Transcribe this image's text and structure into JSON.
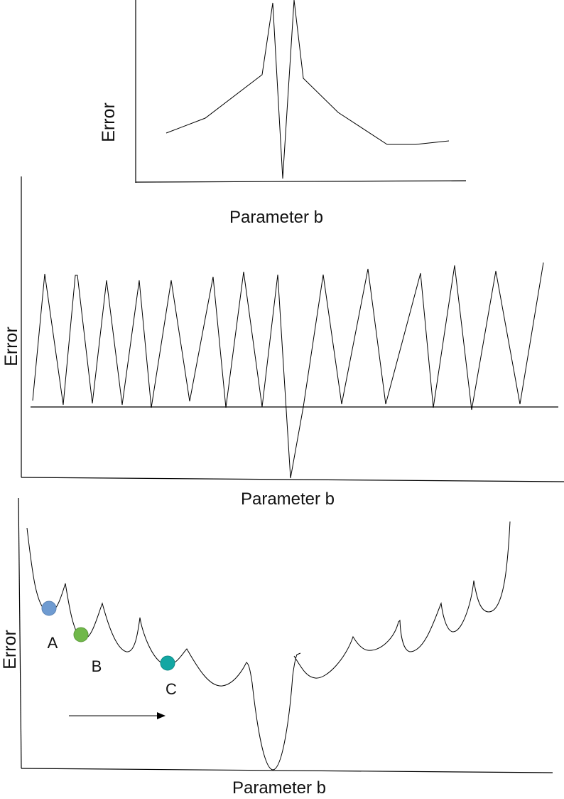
{
  "panels": {
    "top": {
      "ylabel": "Error",
      "xlabel": "Parameter b"
    },
    "middle": {
      "ylabel": "Error",
      "xlabel": "Parameter b"
    },
    "bottom": {
      "ylabel": "Error",
      "xlabel": "Parameter b",
      "balls": [
        {
          "label": "A",
          "color": "#6f9bd1"
        },
        {
          "label": "B",
          "color": "#70b84a"
        },
        {
          "label": "C",
          "color": "#13a7a3"
        }
      ]
    }
  },
  "colors": {
    "line": "#000000",
    "axis": "#000000"
  }
}
